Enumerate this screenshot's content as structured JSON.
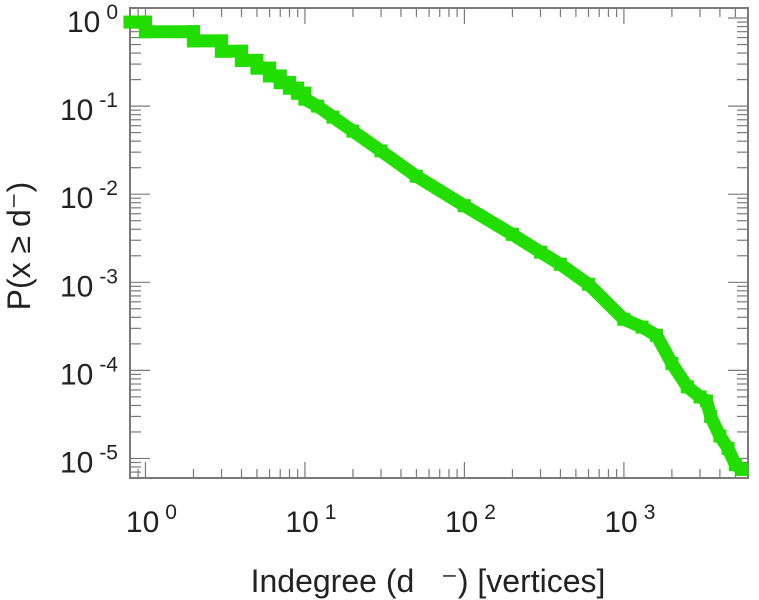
{
  "chart_data": {
    "type": "line",
    "title": "",
    "xlabel": "Indegree (d   ⁻) [vertices]",
    "ylabel": "P(x ≥ d⁻)",
    "xscale": "log",
    "yscale": "log",
    "xlim": [
      0.8,
      6000
    ],
    "ylim": [
      6e-06,
      1.3
    ],
    "grid": false,
    "legend": "none",
    "colors": {
      "series": "#22dd00",
      "frame": "#7a7a7a",
      "text": "#222222"
    },
    "x_ticks": [
      {
        "base": "10",
        "exp": "0"
      },
      {
        "base": "10",
        "exp": "1"
      },
      {
        "base": "10",
        "exp": "2"
      },
      {
        "base": "10",
        "exp": "3"
      }
    ],
    "y_ticks": [
      {
        "base": "10",
        "exp": "0"
      },
      {
        "base": "10",
        "exp": "-1"
      },
      {
        "base": "10",
        "exp": "-2"
      },
      {
        "base": "10",
        "exp": "-3"
      },
      {
        "base": "10",
        "exp": "-4"
      },
      {
        "base": "10",
        "exp": "-5"
      }
    ],
    "series": [
      {
        "values": [
          [
            0.8,
            0.9
          ],
          [
            1,
            0.9
          ],
          [
            1,
            0.7
          ],
          [
            2,
            0.7
          ],
          [
            2,
            0.55
          ],
          [
            3,
            0.55
          ],
          [
            3,
            0.42
          ],
          [
            4,
            0.42
          ],
          [
            4,
            0.33
          ],
          [
            5,
            0.33
          ],
          [
            5,
            0.27
          ],
          [
            6,
            0.27
          ],
          [
            6,
            0.22
          ],
          [
            7,
            0.22
          ],
          [
            7,
            0.185
          ],
          [
            8,
            0.185
          ],
          [
            8,
            0.16
          ],
          [
            9,
            0.16
          ],
          [
            9,
            0.14
          ],
          [
            10,
            0.14
          ],
          [
            10,
            0.12
          ],
          [
            12,
            0.1
          ],
          [
            15,
            0.075
          ],
          [
            20,
            0.052
          ],
          [
            30,
            0.031
          ],
          [
            50,
            0.016
          ],
          [
            100,
            0.0074
          ],
          [
            200,
            0.0035
          ],
          [
            300,
            0.0022
          ],
          [
            400,
            0.0016
          ],
          [
            600,
            0.00095
          ],
          [
            1000,
            0.00038
          ],
          [
            1300,
            0.00031
          ],
          [
            1600,
            0.00025
          ],
          [
            2000,
            0.00012
          ],
          [
            2500,
            6.5e-05
          ],
          [
            3000,
            5e-05
          ],
          [
            3300,
            4.5e-05
          ],
          [
            3500,
            3e-05
          ],
          [
            4000,
            1.8e-05
          ],
          [
            4500,
            1.3e-05
          ],
          [
            5000,
            8.5e-06
          ],
          [
            5500,
            7.5e-06
          ]
        ]
      }
    ]
  }
}
